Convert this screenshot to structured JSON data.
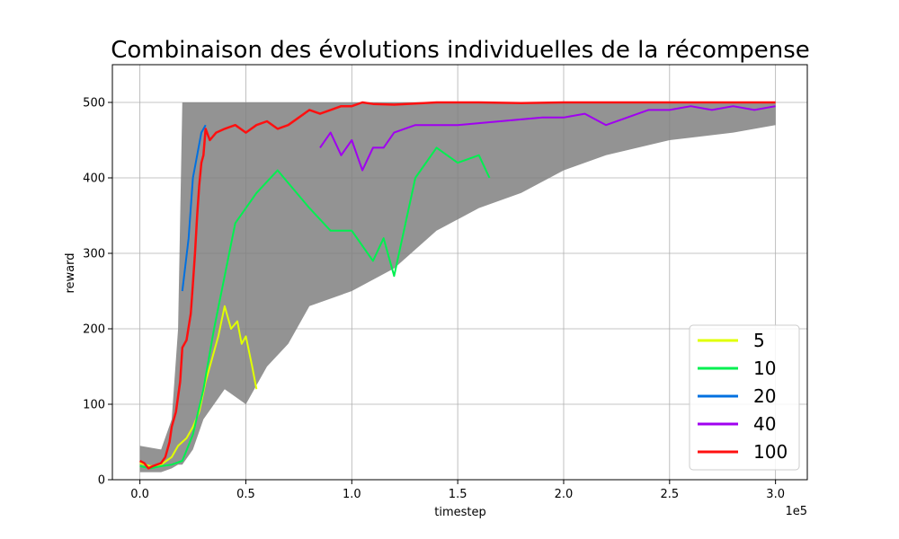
{
  "chart_data": {
    "type": "line",
    "title": "Combinaison des évolutions individuelles de la récompense",
    "xlabel": "timestep",
    "ylabel": "reward",
    "x_multiplier_label": "1e5",
    "xlim": [
      -0.13,
      3.15
    ],
    "ylim": [
      0,
      550
    ],
    "x_ticks": [
      0.0,
      0.5,
      1.0,
      1.5,
      2.0,
      2.5,
      3.0
    ],
    "x_tick_labels": [
      "0.0",
      "0.5",
      "1.0",
      "1.5",
      "2.0",
      "2.5",
      "3.0"
    ],
    "y_ticks": [
      0,
      100,
      200,
      300,
      400,
      500
    ],
    "y_tick_labels": [
      "0",
      "100",
      "200",
      "300",
      "400",
      "500"
    ],
    "grid": true,
    "legend_position": "lower-right",
    "background_band_color": "#808080",
    "background_band": {
      "x": [
        0.0,
        0.1,
        0.15,
        0.18,
        0.2,
        0.25,
        0.3,
        0.4,
        0.5,
        0.6,
        0.7,
        0.8,
        1.0,
        1.2,
        1.4,
        1.6,
        1.8,
        2.0,
        2.2,
        2.5,
        2.8,
        3.0
      ],
      "upper": [
        45,
        40,
        80,
        200,
        500,
        500,
        500,
        500,
        500,
        500,
        500,
        500,
        500,
        500,
        500,
        500,
        500,
        500,
        500,
        500,
        500,
        500
      ],
      "lower": [
        10,
        10,
        15,
        20,
        20,
        40,
        80,
        120,
        100,
        150,
        180,
        230,
        250,
        280,
        330,
        360,
        380,
        410,
        430,
        450,
        460,
        470
      ]
    },
    "series": [
      {
        "name": "5",
        "color": "#e0ff00",
        "x": [
          0.0,
          0.05,
          0.1,
          0.15,
          0.18,
          0.22,
          0.25,
          0.28,
          0.31,
          0.34,
          0.37,
          0.4,
          0.43,
          0.46,
          0.48,
          0.5,
          0.53,
          0.55
        ],
        "y": [
          22,
          18,
          20,
          30,
          45,
          55,
          70,
          90,
          130,
          160,
          190,
          230,
          200,
          210,
          180,
          190,
          150,
          120
        ]
      },
      {
        "name": "10",
        "color": "#00f050",
        "x": [
          0.0,
          0.05,
          0.1,
          0.15,
          0.2,
          0.25,
          0.3,
          0.35,
          0.45,
          0.55,
          0.65,
          0.8,
          0.9,
          1.0,
          1.1,
          1.15,
          1.2,
          1.3,
          1.4,
          1.5,
          1.6,
          1.65
        ],
        "y": [
          18,
          15,
          18,
          20,
          25,
          60,
          120,
          200,
          340,
          380,
          410,
          360,
          330,
          330,
          290,
          320,
          270,
          400,
          440,
          420,
          430,
          400
        ]
      },
      {
        "name": "20",
        "color": "#0070e0",
        "x": [
          0.2,
          0.23,
          0.25,
          0.27,
          0.29,
          0.31
        ],
        "y": [
          250,
          320,
          400,
          430,
          460,
          470
        ]
      },
      {
        "name": "40",
        "color": "#a000f0",
        "x": [
          0.85,
          0.9,
          0.95,
          1.0,
          1.05,
          1.1,
          1.15,
          1.2,
          1.3,
          1.5,
          1.7,
          1.9,
          2.0,
          2.1,
          2.2,
          2.3,
          2.4,
          2.5,
          2.6,
          2.7,
          2.8,
          2.9,
          3.0
        ],
        "y": [
          440,
          460,
          430,
          450,
          410,
          440,
          440,
          460,
          470,
          470,
          475,
          480,
          480,
          485,
          470,
          480,
          490,
          490,
          495,
          490,
          495,
          490,
          495
        ]
      },
      {
        "name": "100",
        "color": "#ff1010",
        "x": [
          0.0,
          0.02,
          0.04,
          0.06,
          0.08,
          0.1,
          0.12,
          0.14,
          0.15,
          0.17,
          0.19,
          0.2,
          0.22,
          0.24,
          0.25,
          0.26,
          0.27,
          0.28,
          0.29,
          0.3,
          0.31,
          0.33,
          0.36,
          0.4,
          0.45,
          0.5,
          0.55,
          0.6,
          0.65,
          0.7,
          0.75,
          0.8,
          0.85,
          0.9,
          0.95,
          1.0,
          1.05,
          1.1,
          1.2,
          1.4,
          1.6,
          1.8,
          2.0,
          2.2,
          2.4,
          2.6,
          2.8,
          3.0
        ],
        "y": [
          25,
          22,
          15,
          18,
          20,
          22,
          30,
          50,
          70,
          90,
          130,
          175,
          185,
          220,
          260,
          300,
          350,
          390,
          420,
          430,
          465,
          450,
          460,
          465,
          470,
          460,
          470,
          475,
          465,
          470,
          480,
          490,
          485,
          490,
          495,
          495,
          500,
          498,
          497,
          500,
          500,
          499,
          500,
          500,
          500,
          500,
          500,
          500
        ]
      }
    ]
  }
}
